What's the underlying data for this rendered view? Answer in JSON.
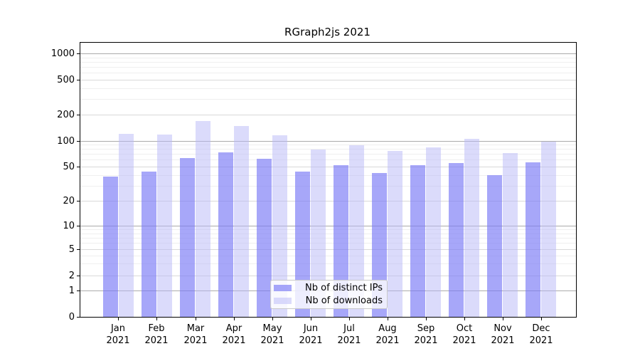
{
  "chart_data": {
    "type": "bar",
    "title": "RGraph2js 2021",
    "categories": [
      "Jan",
      "Feb",
      "Mar",
      "Apr",
      "May",
      "Jun",
      "Jul",
      "Aug",
      "Sep",
      "Oct",
      "Nov",
      "Dec"
    ],
    "year_label": "2021",
    "series": [
      {
        "name": "Nb of distinct IPs",
        "color": "rgba(121,121,246,0.66)",
        "values": [
          38,
          44,
          63,
          73,
          62,
          44,
          52,
          42,
          52,
          55,
          40,
          56
        ]
      },
      {
        "name": "Nb of downloads",
        "color": "rgba(183,183,247,0.5)",
        "values": [
          120,
          118,
          170,
          148,
          115,
          79,
          89,
          76,
          83,
          104,
          72,
          97
        ]
      }
    ],
    "y_axis": {
      "scale": "symlog",
      "ticks": [
        0,
        1,
        2,
        5,
        10,
        20,
        50,
        100,
        200,
        500,
        1000
      ],
      "minor_ticks": [
        3,
        4,
        6,
        7,
        8,
        9,
        30,
        40,
        60,
        70,
        80,
        90,
        300,
        400,
        600,
        700,
        800,
        900
      ],
      "range": [
        0,
        1300
      ]
    },
    "legend": {
      "position": "lower-center",
      "entries": [
        "Nb of distinct IPs",
        "Nb of downloads"
      ]
    },
    "grid": true
  },
  "colors": {
    "bar_ips": "rgba(121,121,246,0.66)",
    "bar_downloads": "rgba(183,183,247,0.5)",
    "grid_power10": "#ababab",
    "grid_labeled": "#d9d9d9",
    "grid_minor": "#efefef",
    "spine": "#000000",
    "background": "#ffffff"
  }
}
